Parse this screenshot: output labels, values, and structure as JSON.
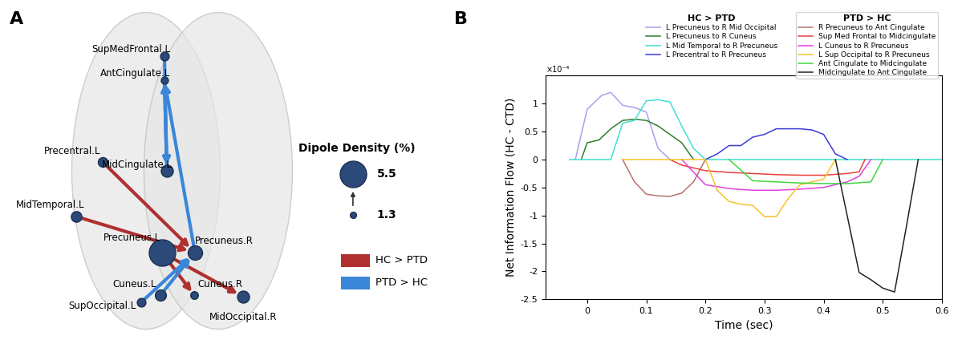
{
  "panel_labels": [
    "A",
    "B"
  ],
  "brain_network": {
    "nodes": [
      {
        "label": "SupMedFrontal.L",
        "dipole_density": 1.8
      },
      {
        "label": "AntCingulate.L",
        "dipole_density": 1.5
      },
      {
        "label": "MidCingulate.L",
        "dipole_density": 2.5
      },
      {
        "label": "Precentral.L",
        "dipole_density": 2.0
      },
      {
        "label": "MidTemporal.L",
        "dipole_density": 2.2
      },
      {
        "label": "Precuneus.L",
        "dipole_density": 5.5
      },
      {
        "label": "Precuneus.R",
        "dipole_density": 3.0
      },
      {
        "label": "Cuneus.L",
        "dipole_density": 2.3
      },
      {
        "label": "Cuneus.R",
        "dipole_density": 1.6
      },
      {
        "label": "SupOccipital.L",
        "dipole_density": 1.8
      },
      {
        "label": "MidOccipital.R",
        "dipole_density": 2.5
      }
    ],
    "groups": [
      {
        "name": "HC > PTD",
        "color": "#b03030"
      },
      {
        "name": "PTD > HC",
        "color": "#3a86d8"
      }
    ],
    "edges": [
      {
        "from": "Precuneus.L",
        "to": "MidOccipital.R",
        "group": "HC > PTD"
      },
      {
        "from": "Precuneus.L",
        "to": "Cuneus.R",
        "group": "HC > PTD"
      },
      {
        "from": "MidTemporal.L",
        "to": "Precuneus.R",
        "group": "HC > PTD"
      },
      {
        "from": "Precentral.L",
        "to": "Precuneus.R",
        "group": "HC > PTD"
      },
      {
        "from": "Precuneus.R",
        "to": "AntCingulate.L",
        "group": "PTD > HC"
      },
      {
        "from": "SupMedFrontal.L",
        "to": "MidCingulate.L",
        "group": "PTD > HC"
      },
      {
        "from": "Cuneus.L",
        "to": "Precuneus.R",
        "group": "PTD > HC"
      },
      {
        "from": "SupOccipital.L",
        "to": "Precuneus.R",
        "group": "PTD > HC"
      },
      {
        "from": "AntCingulate.L",
        "to": "MidCingulate.L",
        "group": "PTD > HC"
      },
      {
        "from": "MidCingulate.L",
        "to": "AntCingulate.L",
        "group": "PTD > HC"
      }
    ],
    "size_legend": {
      "title": "Dipole Density (%)",
      "values": [
        5.5,
        1.3
      ]
    }
  },
  "chart_data": {
    "type": "line",
    "xlabel": "Time (sec)",
    "ylabel": "Net Information Flow (HC - CTD)",
    "annotations": [
      "×10⁻⁴"
    ],
    "xlim": [
      -0.07,
      0.6
    ],
    "xticks": [
      0,
      0.1,
      0.2,
      0.3,
      0.4,
      0.5,
      0.6
    ],
    "ylim": [
      -2.5,
      1.5
    ],
    "yticks": [
      -2.5,
      -2,
      -1.5,
      -1,
      -0.5,
      0,
      0.5,
      1
    ],
    "legend": "upper right",
    "legend_groups": [
      "HC > PTD",
      "PTD > HC"
    ],
    "series": [
      {
        "name": "L Precuneus to R Mid Occipital",
        "group": "HC > PTD",
        "color": "#a89ff0",
        "x": [
          -0.02,
          0.0,
          0.025,
          0.04,
          0.06,
          0.08,
          0.1,
          0.12,
          0.14
        ],
        "values": [
          0,
          0.9,
          1.15,
          1.2,
          0.97,
          0.93,
          0.85,
          0.2,
          0
        ]
      },
      {
        "name": "L Precuneus to R Cuneus",
        "group": "HC > PTD",
        "color": "#2e7d32",
        "x": [
          -0.01,
          0.0,
          0.02,
          0.04,
          0.06,
          0.08,
          0.1,
          0.12,
          0.14,
          0.16,
          0.18
        ],
        "values": [
          0,
          0.3,
          0.35,
          0.55,
          0.7,
          0.72,
          0.7,
          0.6,
          0.45,
          0.3,
          0
        ]
      },
      {
        "name": "L Mid Temporal to R Precuneus",
        "group": "HC > PTD",
        "color": "#40e0d0",
        "x": [
          -0.03,
          0.04,
          0.06,
          0.08,
          0.1,
          0.12,
          0.14,
          0.16,
          0.18,
          0.2,
          0.6
        ],
        "values": [
          0,
          0,
          0.65,
          0.7,
          1.05,
          1.07,
          1.03,
          0.6,
          0.2,
          0,
          0
        ]
      },
      {
        "name": "L Precentral to R Precuneus",
        "group": "HC > PTD",
        "color": "#3b3bd6",
        "x": [
          0.2,
          0.22,
          0.24,
          0.26,
          0.28,
          0.3,
          0.32,
          0.34,
          0.36,
          0.38,
          0.4,
          0.42,
          0.44
        ],
        "values": [
          0,
          0.1,
          0.25,
          0.25,
          0.4,
          0.45,
          0.55,
          0.55,
          0.55,
          0.53,
          0.45,
          0.1,
          0
        ]
      },
      {
        "name": "R Precuneus to Ant Cingulate",
        "group": "PTD > HC",
        "color": "#b5736b",
        "x": [
          0.06,
          0.08,
          0.1,
          0.12,
          0.14,
          0.16,
          0.18,
          0.2
        ],
        "values": [
          0,
          -0.4,
          -0.62,
          -0.65,
          -0.66,
          -0.6,
          -0.4,
          0
        ]
      },
      {
        "name": "Sup Med Frontal to Midcingulate",
        "group": "PTD > HC",
        "color": "#e8403a",
        "x": [
          0.14,
          0.16,
          0.18,
          0.2,
          0.24,
          0.28,
          0.32,
          0.36,
          0.4,
          0.44,
          0.46,
          0.47
        ],
        "values": [
          0,
          -0.1,
          -0.15,
          -0.2,
          -0.23,
          -0.25,
          -0.27,
          -0.28,
          -0.28,
          -0.25,
          -0.22,
          0
        ]
      },
      {
        "name": "L Cuneus to R Precuneus",
        "group": "PTD > HC",
        "color": "#e040e0",
        "x": [
          0.16,
          0.2,
          0.24,
          0.28,
          0.32,
          0.36,
          0.4,
          0.44,
          0.46,
          0.48
        ],
        "values": [
          0,
          -0.45,
          -0.52,
          -0.55,
          -0.55,
          -0.53,
          -0.5,
          -0.4,
          -0.3,
          0
        ]
      },
      {
        "name": "L Sup Occipital to R Precuneus",
        "group": "PTD > HC",
        "color": "#f7c22a",
        "x": [
          0.06,
          0.2,
          0.22,
          0.24,
          0.26,
          0.28,
          0.3,
          0.32,
          0.34,
          0.36,
          0.4,
          0.42
        ],
        "values": [
          0,
          0,
          -0.55,
          -0.75,
          -0.8,
          -0.82,
          -1.02,
          -1.02,
          -0.7,
          -0.45,
          -0.35,
          0
        ]
      },
      {
        "name": "Ant Cingulate to Midcingulate",
        "group": "PTD > HC",
        "color": "#3fd63f",
        "x": [
          0.24,
          0.28,
          0.32,
          0.36,
          0.4,
          0.44,
          0.48,
          0.5
        ],
        "values": [
          0,
          -0.38,
          -0.4,
          -0.42,
          -0.43,
          -0.43,
          -0.4,
          0
        ]
      },
      {
        "name": "Midcingulate to Ant Cingulate",
        "group": "PTD > HC",
        "color": "#222222",
        "x": [
          0.42,
          0.46,
          0.48,
          0.5,
          0.52,
          0.54,
          0.56
        ],
        "values": [
          0,
          -2.02,
          -2.15,
          -2.3,
          -2.37,
          -1.2,
          0
        ]
      }
    ]
  }
}
